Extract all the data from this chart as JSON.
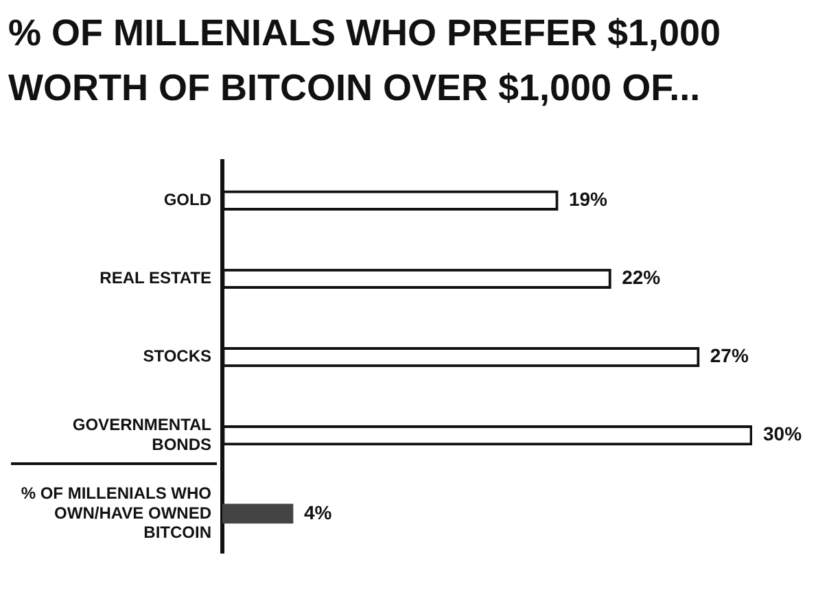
{
  "chart_data": {
    "type": "bar",
    "orientation": "horizontal",
    "title": "% OF MILLENIALS WHO PREFER $1,000 WORTH OF BITCOIN OVER $1,000 OF...",
    "categories": [
      "GOLD",
      "REAL ESTATE",
      "STOCKS",
      "GOVERNMENTAL BONDS",
      "% OF MILLENIALS WHO OWN/HAVE OWNED BITCOIN"
    ],
    "values": [
      19,
      22,
      27,
      30,
      4
    ],
    "colors": [
      "#ffffff",
      "#ffffff",
      "#ffffff",
      "#ffffff",
      "#444444"
    ],
    "value_labels": [
      "19%",
      "22%",
      "27%",
      "30%",
      "4%"
    ],
    "legend": false,
    "grid": false
  }
}
